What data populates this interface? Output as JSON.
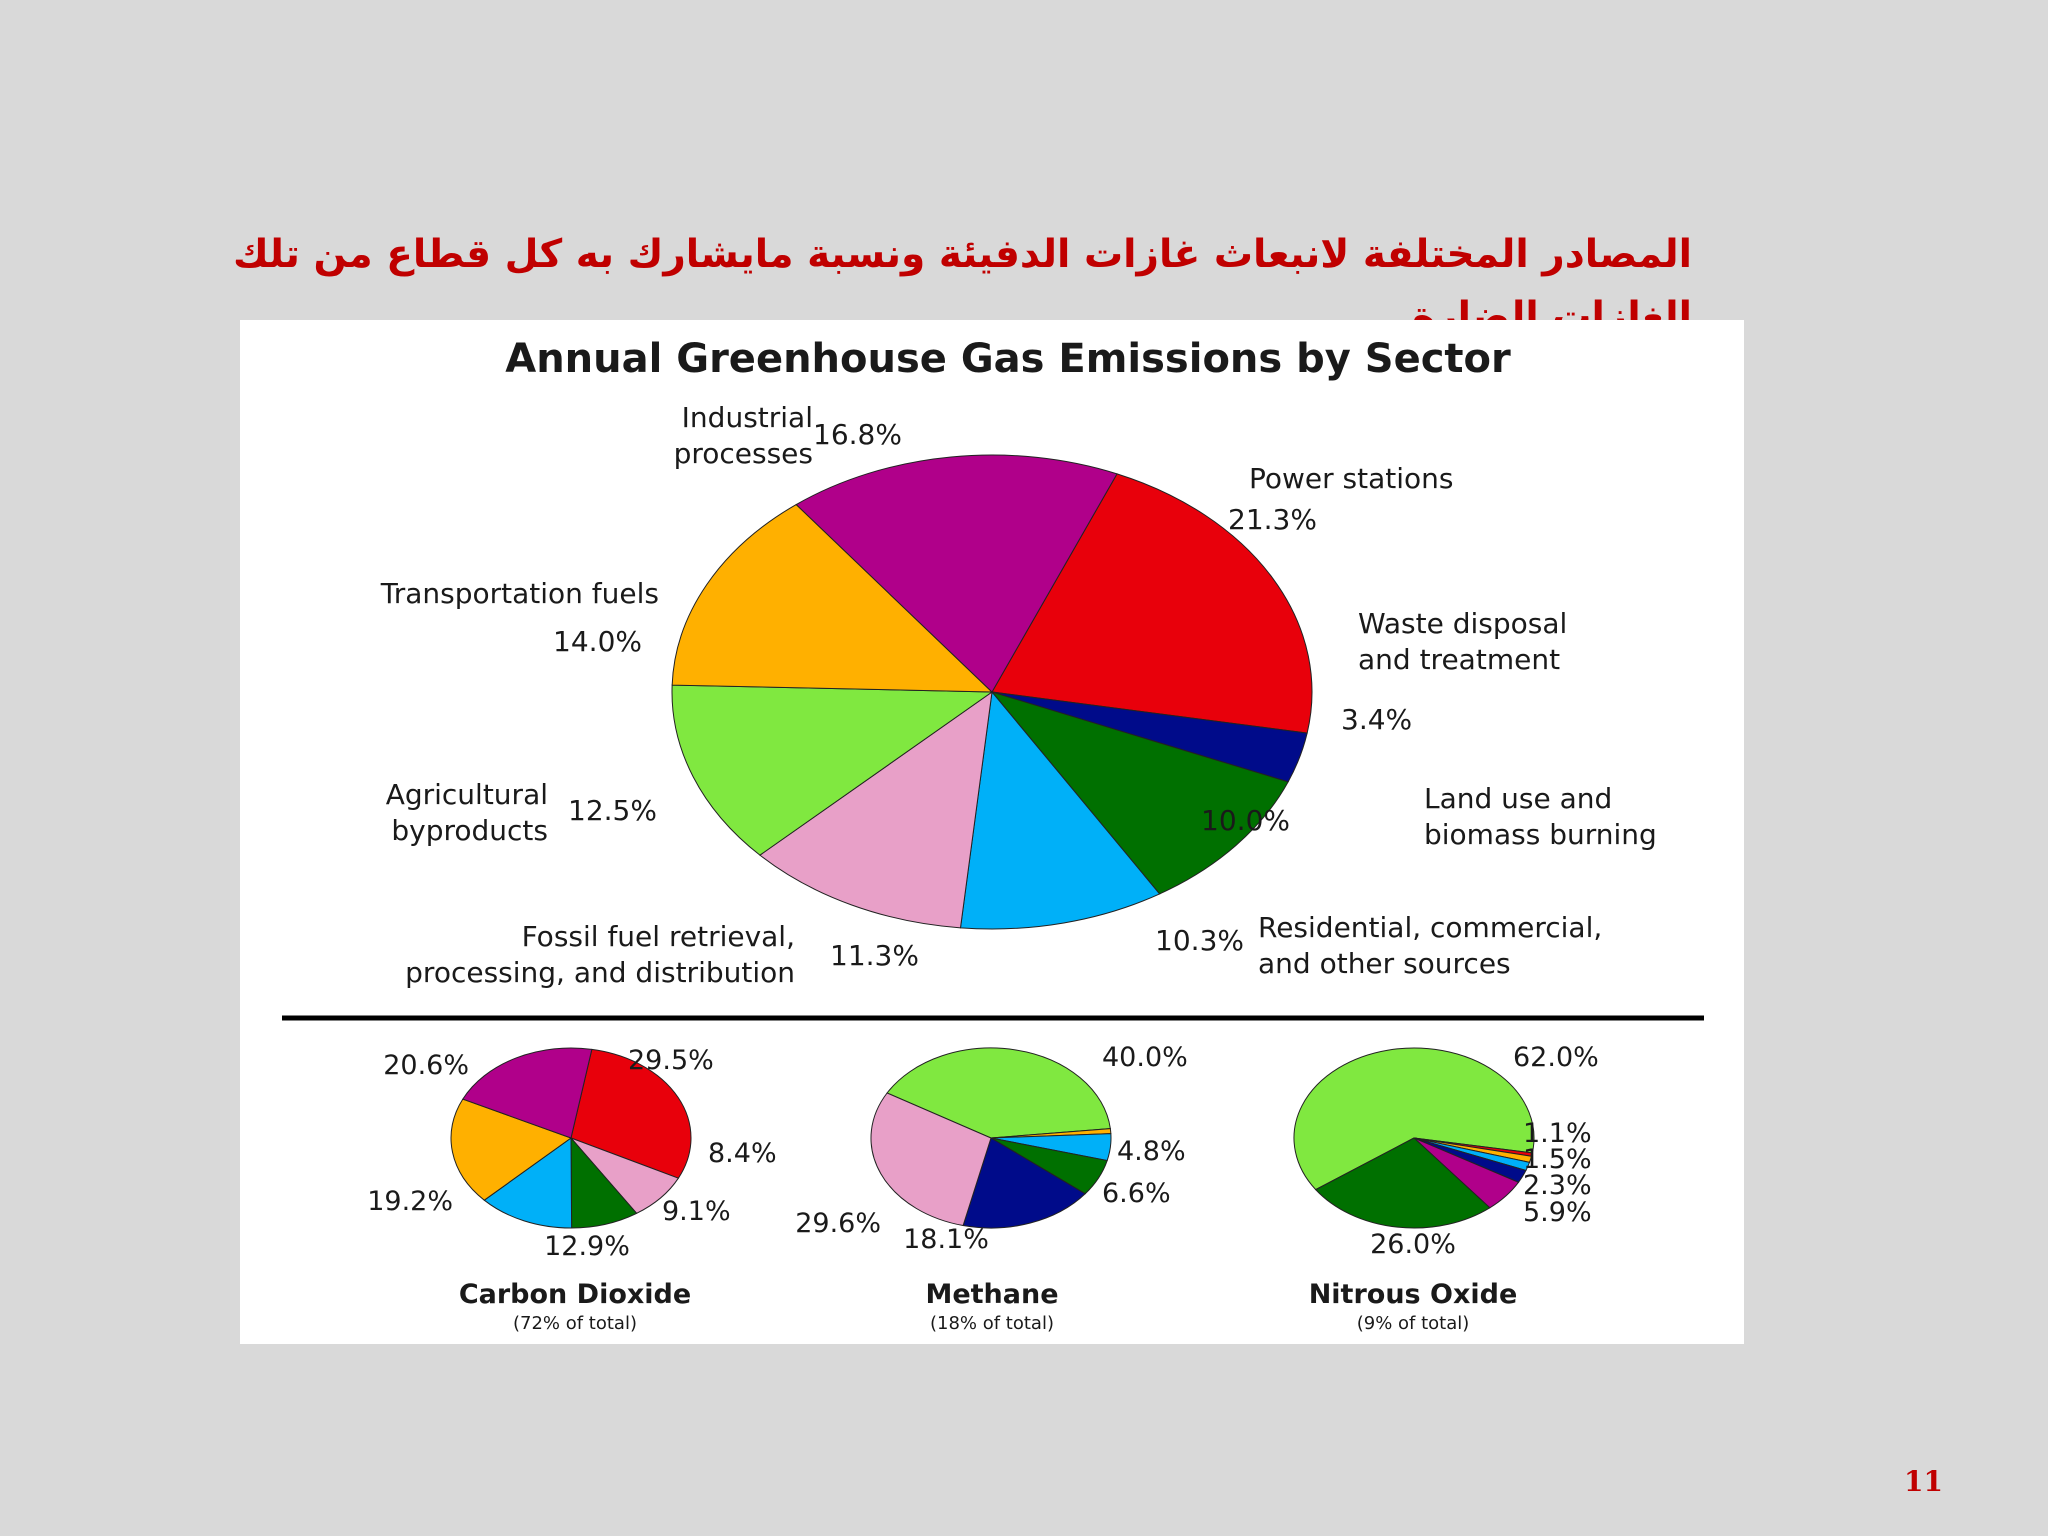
{
  "slide": {
    "title": "المصادر المختلفة لانبعاث غازات  الدفيئة ونسبة مايشارك به كل قطاع من تلك الغازات الضارة",
    "page_number": "11"
  },
  "colors": {
    "title_text": "#c00000",
    "background": "#d9d9d9"
  },
  "chart_data": [
    {
      "type": "pie",
      "title": "Annual Greenhouse Gas Emissions by Sector",
      "slices": [
        {
          "label": [
            "Power stations"
          ],
          "value": 21.3,
          "display": "21.3%",
          "color": "#e8000b"
        },
        {
          "label": [
            "Waste disposal",
            "and treatment"
          ],
          "value": 3.4,
          "display": "3.4%",
          "color": "#000b8a"
        },
        {
          "label": [
            "Land use and",
            "biomass burning"
          ],
          "value": 10.0,
          "display": "10.0%",
          "color": "#007000"
        },
        {
          "label": [
            "Residential, commercial,",
            "and other sources"
          ],
          "value": 10.3,
          "display": "10.3%",
          "color": "#00b0f8"
        },
        {
          "label": [
            "Fossil fuel retrieval,",
            "processing, and distribution"
          ],
          "value": 11.3,
          "display": "11.3%",
          "color": "#e8a0c8"
        },
        {
          "label": [
            "Agricultural",
            "byproducts"
          ],
          "value": 12.5,
          "display": "12.5%",
          "color": "#80e840"
        },
        {
          "label": [
            "Transportation fuels"
          ],
          "value": 14.0,
          "display": "14.0%",
          "color": "#ffb000"
        },
        {
          "label": [
            "Industrial",
            "processes"
          ],
          "value": 16.8,
          "display": "16.8%",
          "color": "#b0008a"
        }
      ]
    },
    {
      "type": "pie",
      "title": "Carbon Dioxide",
      "subtitle": "(72% of total)",
      "slices": [
        {
          "value": 29.5,
          "display": "29.5%",
          "color": "#e8000b"
        },
        {
          "value": 8.4,
          "display": "8.4%",
          "color": "#e8a0c8"
        },
        {
          "value": 9.1,
          "display": "9.1%",
          "color": "#007000"
        },
        {
          "value": 12.9,
          "display": "12.9%",
          "color": "#00b0f8"
        },
        {
          "value": 19.2,
          "display": "19.2%",
          "color": "#ffb000"
        },
        {
          "value": 20.6,
          "display": "20.6%",
          "color": "#b0008a"
        }
      ]
    },
    {
      "type": "pie",
      "title": "Methane",
      "subtitle": "(18% of total)",
      "slices": [
        {
          "value": 40.0,
          "display": "40.0%",
          "color": "#80e840"
        },
        {
          "value": 0.9,
          "display": "",
          "color": "#ffb000"
        },
        {
          "value": 4.8,
          "display": "4.8%",
          "color": "#00b0f8"
        },
        {
          "value": 6.6,
          "display": "6.6%",
          "color": "#007000"
        },
        {
          "value": 18.1,
          "display": "18.1%",
          "color": "#000b8a"
        },
        {
          "value": 29.6,
          "display": "29.6%",
          "color": "#e8a0c8"
        }
      ]
    },
    {
      "type": "pie",
      "title": "Nitrous Oxide",
      "subtitle": "(9% of total)",
      "slices": [
        {
          "value": 62.0,
          "display": "62.0%",
          "color": "#80e840"
        },
        {
          "value": 0.6,
          "display": "",
          "color": "#e8000b"
        },
        {
          "value": 1.1,
          "display": "1.1%",
          "color": "#ffb000"
        },
        {
          "value": 1.5,
          "display": "1.5%",
          "color": "#00b0f8"
        },
        {
          "value": 2.3,
          "display": "2.3%",
          "color": "#000b8a"
        },
        {
          "value": 5.9,
          "display": "5.9%",
          "color": "#b0008a"
        },
        {
          "value": 26.0,
          "display": "26.0%",
          "color": "#007000"
        }
      ]
    }
  ]
}
